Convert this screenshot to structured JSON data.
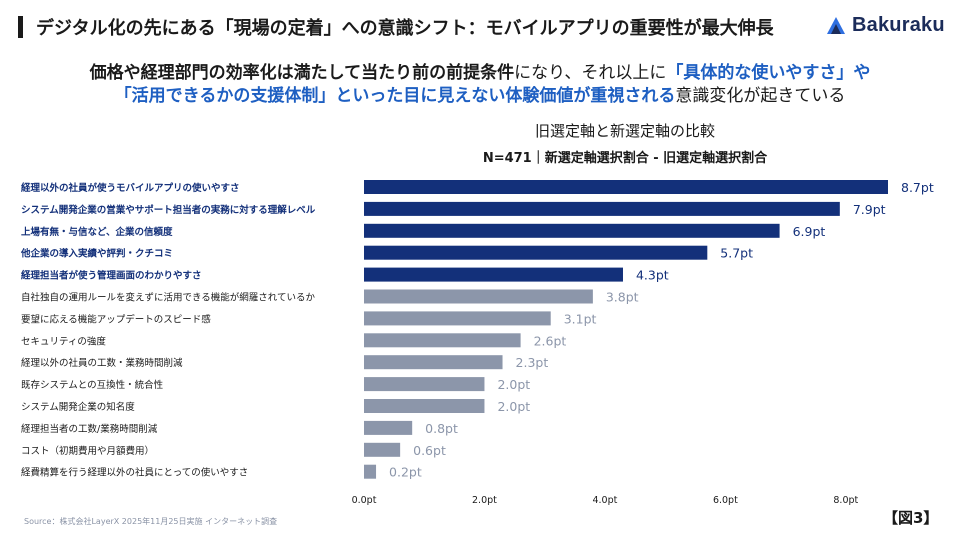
{
  "header": {
    "title": "デジタル化の先にある「現場の定着」への意識シフト：モバイルアプリの重要性が最大伸長",
    "logo_text": "Bakuraku"
  },
  "lead": {
    "line1_part1": "価格や経理部門の効率化は満たして当たり前の前提条件",
    "line1_part2": "になり、それ以上に",
    "line1_part3": "「具体的な使いやすさ」や",
    "line2_part1": "「活用できるかの支援体制」といった目に見えない体験価値が重視される",
    "line2_part2": "意識変化が起きている"
  },
  "chart_data": {
    "type": "bar",
    "orientation": "horizontal",
    "title": "旧選定軸と新選定軸の比較",
    "subtitle": "N=471｜新選定軸選択割合 - 旧選定軸選択割合",
    "categories": [
      "経理以外の社員が使うモバイルアプリの使いやすさ",
      "システム開発企業の営業やサポート担当者の実務に対する理解レベル",
      "上場有無・与信など、企業の信頼度",
      "他企業の導入実績や評判・クチコミ",
      "経理担当者が使う管理画面のわかりやすさ",
      "自社独自の運用ルールを変えずに活用できる機能が網羅されているか",
      "要望に応える機能アップデートのスピード感",
      "セキュリティの強度",
      "経理以外の社員の工数・業務時間削減",
      "既存システムとの互換性・統合性",
      "システム開発企業の知名度",
      "経理担当者の工数/業務時間削減",
      "コスト（初期費用や月額費用）",
      "経費精算を行う経理以外の社員にとっての使いやすさ"
    ],
    "values": [
      8.7,
      7.9,
      6.9,
      5.7,
      4.3,
      3.8,
      3.1,
      2.6,
      2.3,
      2.0,
      2.0,
      0.8,
      0.6,
      0.2
    ],
    "value_labels": [
      "8.7pt",
      "7.9pt",
      "6.9pt",
      "5.7pt",
      "4.3pt",
      "3.8pt",
      "3.1pt",
      "2.6pt",
      "2.3pt",
      "2.0pt",
      "2.0pt",
      "0.8pt",
      "0.6pt",
      "0.2pt"
    ],
    "highlighted_count": 5,
    "xlim": [
      0,
      8.7
    ],
    "xticks": [
      0,
      2,
      4,
      6,
      8
    ],
    "xtick_labels": [
      "0.0pt",
      "2.0pt",
      "4.0pt",
      "6.0pt",
      "8.0pt"
    ],
    "grid": false,
    "colors": {
      "highlight_bar": "#13307a",
      "normal_bar": "#8c96aa",
      "highlight_label": "#13307a",
      "normal_label": "#1a1a1a",
      "highlight_value": "#13307a",
      "normal_value": "#8c96aa"
    }
  },
  "footer": {
    "source": "Source：株式会社LayerX  2025年11月25日実施 インターネット調査",
    "figure_label": "【図3】"
  },
  "colors": {
    "accent_blue": "#1e5fc2",
    "logo_navy": "#1b2c5a",
    "logo_blue": "#2f6fe0"
  }
}
